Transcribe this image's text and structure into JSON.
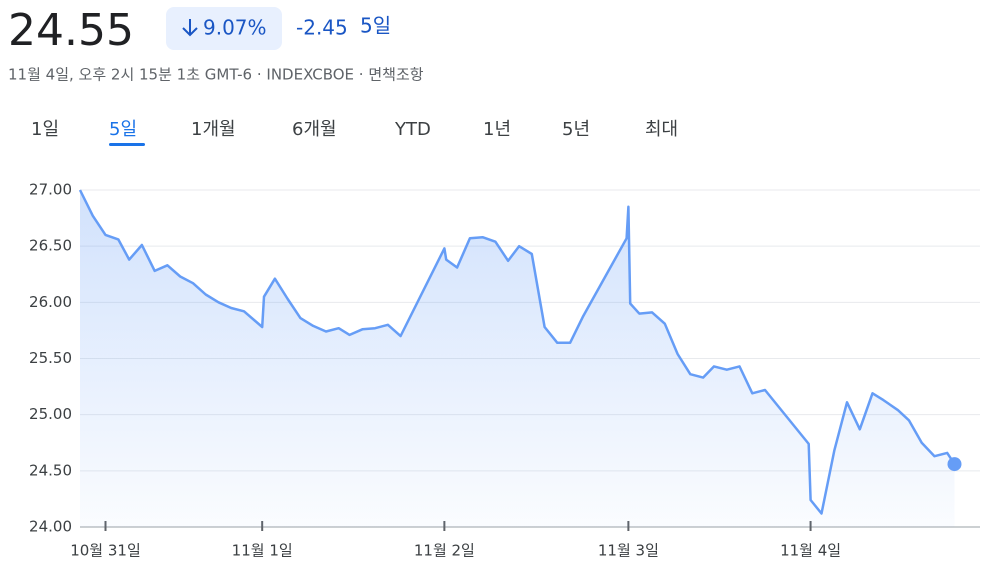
{
  "header": {
    "price": "24.55",
    "change_percent": "9.07%",
    "change": "-2.45",
    "period": "5일",
    "subtitle": "11월 4일, 오후 2시 15분 1초 GMT-6 · INDEXCBOE · 면책조항",
    "tabs": [
      "1일",
      "5일",
      "1개월",
      "6개월",
      "YTD",
      "1년",
      "5년",
      "최대"
    ],
    "selected_tab": 1
  },
  "chart_data": {
    "type": "area",
    "color": "#669df6",
    "x": [
      -0.14,
      -0.07,
      0,
      0.07,
      0.13,
      0.2,
      0.27,
      0.34,
      0.41,
      0.48,
      0.55,
      0.62,
      0.69,
      0.76,
      0.86,
      0.87,
      0.93,
      1.0,
      1.07,
      1.14,
      1.21,
      1.28,
      1.34,
      1.41,
      1.48,
      1.55,
      1.62,
      1.86,
      1.87,
      1.93,
      2.0,
      2.07,
      2.14,
      2.21,
      2.27,
      2.34,
      2.41,
      2.48,
      2.55,
      2.62,
      2.86,
      2.87,
      2.88,
      2.93,
      3.0,
      3.07,
      3.14,
      3.21,
      3.28,
      3.34,
      3.41,
      3.48,
      3.55,
      3.62,
      3.86,
      3.87,
      3.93,
      4.0,
      4.07,
      4.14,
      4.21,
      4.27,
      4.35,
      4.41,
      4.48,
      4.55,
      4.62,
      4.66
    ],
    "values": [
      27.0,
      26.77,
      26.6,
      26.56,
      26.38,
      26.51,
      26.28,
      26.33,
      26.23,
      26.17,
      26.07,
      26.0,
      25.95,
      25.92,
      25.78,
      26.05,
      26.21,
      26.03,
      25.86,
      25.79,
      25.74,
      25.77,
      25.71,
      25.76,
      25.77,
      25.8,
      25.7,
      26.48,
      26.38,
      26.31,
      26.57,
      26.58,
      26.54,
      26.37,
      26.5,
      26.43,
      25.78,
      25.64,
      25.64,
      25.87,
      26.57,
      26.85,
      25.99,
      25.9,
      25.91,
      25.81,
      25.54,
      25.36,
      25.33,
      25.43,
      25.4,
      25.43,
      25.19,
      25.22,
      24.74,
      24.24,
      24.12,
      24.68,
      25.11,
      24.87,
      25.19,
      25.13,
      25.04,
      24.95,
      24.75,
      24.63,
      24.66,
      24.56
    ],
    "xlim": [
      -0.14,
      4.8
    ],
    "xticks": [
      {
        "value": 0,
        "label": "10월 31일"
      },
      {
        "value": 0.86,
        "label": "11월 1일"
      },
      {
        "value": 1.86,
        "label": "11월 2일"
      },
      {
        "value": 2.87,
        "label": "11월 3일"
      },
      {
        "value": 3.87,
        "label": "11월 4일"
      }
    ],
    "ylim": [
      24,
      27
    ],
    "yticks": [
      {
        "value": 24,
        "label": "24.00"
      },
      {
        "value": 24.5,
        "label": "24.50"
      },
      {
        "value": 25,
        "label": "25.00"
      },
      {
        "value": 25.5,
        "label": "25.50"
      },
      {
        "value": 26,
        "label": "26.00"
      },
      {
        "value": 26.5,
        "label": "26.50"
      },
      {
        "value": 27,
        "label": "27.00"
      }
    ],
    "grid": true
  }
}
